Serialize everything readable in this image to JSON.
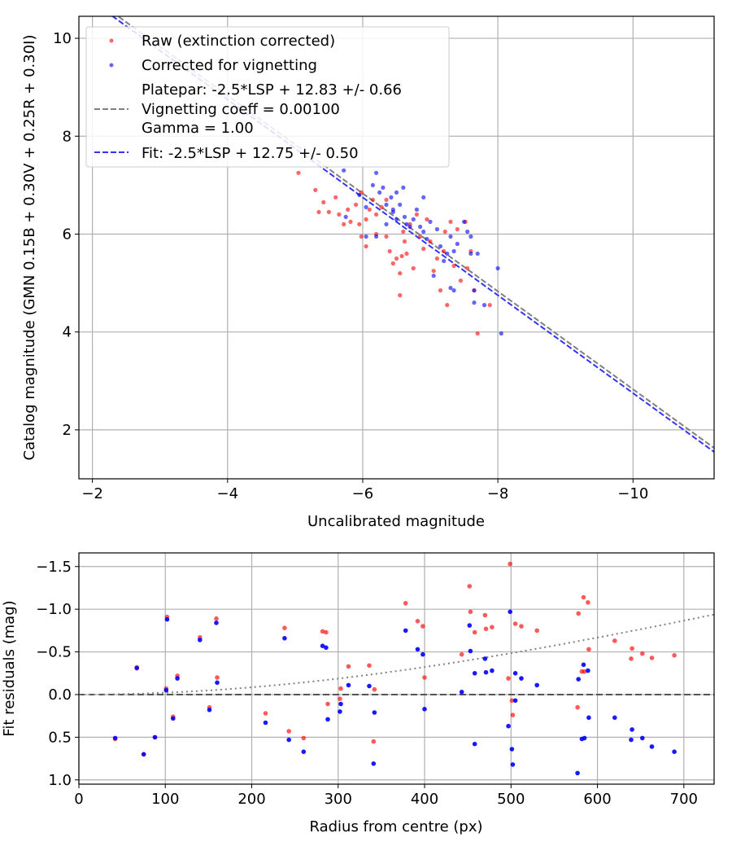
{
  "chart_data": [
    {
      "type": "scatter",
      "xlabel": "Uncalibrated magnitude",
      "ylabel": "Catalog magnitude (GMN 0.15B + 0.30V + 0.25R + 0.30I)",
      "xlim": [
        -1.8,
        -11.2
      ],
      "ylim": [
        10.45,
        1.0
      ],
      "xticks": [
        -2,
        -4,
        -6,
        -8,
        -10
      ],
      "xtick_labels": [
        "−2",
        "−4",
        "−6",
        "−8",
        "−10"
      ],
      "yticks": [
        2,
        4,
        6,
        8,
        10
      ],
      "ytick_labels": [
        "2",
        "4",
        "6",
        "8",
        "10"
      ],
      "grid": true,
      "legend_position": "top-left",
      "legend": [
        {
          "label": "Raw (extinction corrected)",
          "marker": "dot",
          "color": "#ff0000"
        },
        {
          "label": "Corrected for vignetting",
          "marker": "dot",
          "color": "#0000ff"
        },
        {
          "label_lines": [
            "Platepar: -2.5*LSP + 12.83 +/- 0.66",
            "Vignetting coeff = 0.00100",
            "Gamma = 1.00"
          ],
          "marker": "dashed-line",
          "color": "#808080"
        },
        {
          "label": "Fit: -2.5*LSP + 12.75 +/- 0.50",
          "marker": "dashed-line",
          "color": "#3333ff"
        }
      ],
      "series": [
        {
          "name": "Raw (extinction corrected)",
          "color": "#ff0000",
          "points": [
            [
              -5.05,
              7.25
            ],
            [
              -5.3,
              6.9
            ],
            [
              -5.35,
              6.45
            ],
            [
              -5.42,
              6.65
            ],
            [
              -5.5,
              6.45
            ],
            [
              -5.6,
              6.75
            ],
            [
              -5.65,
              6.4
            ],
            [
              -5.72,
              6.2
            ],
            [
              -5.78,
              6.5
            ],
            [
              -5.82,
              6.25
            ],
            [
              -5.9,
              6.6
            ],
            [
              -5.95,
              6.2
            ],
            [
              -5.98,
              5.95
            ],
            [
              -6.05,
              6.3
            ],
            [
              -6.1,
              6.5
            ],
            [
              -6.15,
              6.7
            ],
            [
              -6.2,
              6.4
            ],
            [
              -6.28,
              6.55
            ],
            [
              -6.35,
              6.7
            ],
            [
              -6.05,
              5.75
            ],
            [
              -6.2,
              6.0
            ],
            [
              -6.35,
              5.95
            ],
            [
              -6.4,
              5.65
            ],
            [
              -6.45,
              5.4
            ],
            [
              -6.5,
              5.5
            ],
            [
              -6.55,
              5.2
            ],
            [
              -6.58,
              5.55
            ],
            [
              -6.62,
              5.85
            ],
            [
              -6.65,
              5.6
            ],
            [
              -6.55,
              4.75
            ],
            [
              -6.6,
              6.05
            ],
            [
              -6.7,
              6.2
            ],
            [
              -6.75,
              5.3
            ],
            [
              -6.8,
              6.4
            ],
            [
              -6.85,
              5.95
            ],
            [
              -6.9,
              5.7
            ],
            [
              -6.95,
              6.3
            ],
            [
              -7.0,
              5.85
            ],
            [
              -7.05,
              5.25
            ],
            [
              -7.1,
              5.5
            ],
            [
              -7.15,
              4.85
            ],
            [
              -7.2,
              5.65
            ],
            [
              -7.22,
              6.05
            ],
            [
              -7.25,
              4.55
            ],
            [
              -7.3,
              6.25
            ],
            [
              -7.35,
              5.35
            ],
            [
              -7.4,
              6.1
            ],
            [
              -7.45,
              5.05
            ],
            [
              -7.55,
              5.3
            ],
            [
              -7.6,
              5.65
            ],
            [
              -7.65,
              4.85
            ],
            [
              -7.7,
              3.97
            ],
            [
              -7.88,
              4.55
            ],
            [
              -7.52,
              6.25
            ],
            [
              -5.98,
              6.85
            ]
          ]
        },
        {
          "name": "Corrected for vignetting",
          "color": "#0000ff",
          "points": [
            [
              -5.72,
              7.3
            ],
            [
              -5.95,
              6.8
            ],
            [
              -6.05,
              6.55
            ],
            [
              -6.15,
              7.0
            ],
            [
              -6.2,
              7.25
            ],
            [
              -6.25,
              6.85
            ],
            [
              -6.3,
              6.95
            ],
            [
              -6.35,
              6.6
            ],
            [
              -6.42,
              6.75
            ],
            [
              -6.45,
              6.45
            ],
            [
              -6.5,
              6.85
            ],
            [
              -6.55,
              6.6
            ],
            [
              -6.62,
              6.35
            ],
            [
              -6.7,
              6.15
            ],
            [
              -6.75,
              6.3
            ],
            [
              -6.8,
              6.5
            ],
            [
              -6.85,
              6.15
            ],
            [
              -6.9,
              6.05
            ],
            [
              -6.95,
              5.9
            ],
            [
              -7.0,
              6.25
            ],
            [
              -7.1,
              6.1
            ],
            [
              -7.15,
              5.75
            ],
            [
              -7.2,
              5.45
            ],
            [
              -7.25,
              5.6
            ],
            [
              -7.3,
              5.95
            ],
            [
              -7.35,
              5.65
            ],
            [
              -7.4,
              5.8
            ],
            [
              -7.5,
              6.25
            ],
            [
              -7.55,
              6.05
            ],
            [
              -7.6,
              5.6
            ],
            [
              -7.65,
              4.85
            ],
            [
              -7.7,
              5.6
            ],
            [
              -7.8,
              4.55
            ],
            [
              -7.65,
              4.6
            ],
            [
              -8.0,
              5.3
            ],
            [
              -8.05,
              3.97
            ],
            [
              -6.05,
              5.95
            ],
            [
              -6.2,
              5.95
            ],
            [
              -6.45,
              6.5
            ],
            [
              -6.6,
              6.95
            ],
            [
              -6.5,
              6.3
            ],
            [
              -7.35,
              4.85
            ],
            [
              -7.3,
              4.9
            ],
            [
              -6.35,
              6.2
            ],
            [
              -6.65,
              6.2
            ],
            [
              -7.05,
              5.15
            ],
            [
              -6.9,
              6.75
            ],
            [
              -5.75,
              6.35
            ],
            [
              -7.6,
              5.95
            ]
          ]
        },
        {
          "name": "Platepar: -2.5*LSP + 12.83 +/- 0.66",
          "type": "line",
          "style": "dashed",
          "color": "#808080",
          "intercept": 12.83,
          "slope": 1
        },
        {
          "name": "Fit: -2.5*LSP + 12.75 +/- 0.50",
          "type": "line",
          "style": "dashed",
          "color": "#3333ff",
          "intercept": 12.75,
          "slope": 1
        }
      ]
    },
    {
      "type": "scatter",
      "xlabel": "Radius from centre (px)",
      "ylabel": "Fit residuals (mag)",
      "xlim": [
        0,
        735
      ],
      "ylim": [
        -1.66,
        1.05
      ],
      "xticks": [
        0,
        100,
        200,
        300,
        400,
        500,
        600,
        700
      ],
      "xtick_labels": [
        "0",
        "100",
        "200",
        "300",
        "400",
        "500",
        "600",
        "700"
      ],
      "yticks": [
        1.0,
        0.5,
        0.0,
        -0.5,
        -1.0,
        -1.5
      ],
      "ytick_labels": [
        "1.0",
        "0.5",
        "0.0",
        "−0.5",
        "−1.0",
        "−1.5"
      ],
      "grid": true,
      "zero_line": {
        "value": 0,
        "style": "dashed",
        "color": "#555555"
      },
      "vignetting_curve": {
        "style": "dotted",
        "color": "#808080",
        "coeff": 0.001,
        "gamma": 1.0
      },
      "series": [
        {
          "name": "Raw (extinction corrected)",
          "color": "#ff0000",
          "points": [
            [
              42,
              0.52
            ],
            [
              67,
              -0.32
            ],
            [
              75,
              0.7
            ],
            [
              88,
              0.5
            ],
            [
              101,
              -0.07
            ],
            [
              102,
              -0.91
            ],
            [
              109,
              0.26
            ],
            [
              114,
              -0.22
            ],
            [
              140,
              -0.67
            ],
            [
              151,
              0.15
            ],
            [
              159,
              -0.89
            ],
            [
              160,
              -0.2
            ],
            [
              216,
              0.22
            ],
            [
              238,
              -0.78
            ],
            [
              243,
              0.43
            ],
            [
              260,
              0.51
            ],
            [
              282,
              -0.74
            ],
            [
              286,
              -0.73
            ],
            [
              288,
              0.11
            ],
            [
              302,
              0.05
            ],
            [
              303,
              -0.07
            ],
            [
              312,
              -0.33
            ],
            [
              336,
              -0.34
            ],
            [
              341,
              0.55
            ],
            [
              342,
              -0.06
            ],
            [
              378,
              -1.07
            ],
            [
              392,
              -0.86
            ],
            [
              398,
              -0.8
            ],
            [
              400,
              -0.2
            ],
            [
              443,
              -0.47
            ],
            [
              453,
              -0.97
            ],
            [
              452,
              -1.27
            ],
            [
              458,
              -0.73
            ],
            [
              470,
              -0.93
            ],
            [
              471,
              -0.77
            ],
            [
              478,
              -0.79
            ],
            [
              497,
              -0.19
            ],
            [
              499,
              -1.53
            ],
            [
              502,
              0.24
            ],
            [
              505,
              -0.83
            ],
            [
              501,
              0.07
            ],
            [
              512,
              -0.8
            ],
            [
              530,
              -0.75
            ],
            [
              577,
              0.15
            ],
            [
              578,
              -0.95
            ],
            [
              582,
              -0.27
            ],
            [
              584,
              -1.14
            ],
            [
              585,
              -0.27
            ],
            [
              589,
              -1.08
            ],
            [
              590,
              -0.53
            ],
            [
              620,
              -0.63
            ],
            [
              639,
              -0.42
            ],
            [
              640,
              -0.54
            ],
            [
              652,
              -0.48
            ],
            [
              663,
              -0.43
            ],
            [
              689,
              -0.46
            ]
          ]
        },
        {
          "name": "Corrected for vignetting",
          "color": "#0000ff",
          "points": [
            [
              42,
              0.51
            ],
            [
              67,
              -0.31
            ],
            [
              75,
              0.7
            ],
            [
              88,
              0.5
            ],
            [
              101,
              -0.05
            ],
            [
              102,
              -0.88
            ],
            [
              109,
              0.28
            ],
            [
              114,
              -0.19
            ],
            [
              140,
              -0.64
            ],
            [
              151,
              0.18
            ],
            [
              159,
              -0.84
            ],
            [
              160,
              -0.14
            ],
            [
              216,
              0.33
            ],
            [
              238,
              -0.66
            ],
            [
              243,
              0.53
            ],
            [
              260,
              0.67
            ],
            [
              282,
              -0.57
            ],
            [
              286,
              -0.55
            ],
            [
              288,
              0.29
            ],
            [
              302,
              0.2
            ],
            [
              303,
              0.11
            ],
            [
              312,
              -0.11
            ],
            [
              336,
              -0.1
            ],
            [
              341,
              0.81
            ],
            [
              342,
              0.21
            ],
            [
              378,
              -0.75
            ],
            [
              392,
              -0.53
            ],
            [
              398,
              -0.47
            ],
            [
              400,
              0.17
            ],
            [
              443,
              -0.03
            ],
            [
              453,
              -0.51
            ],
            [
              452,
              -0.81
            ],
            [
              458,
              0.58
            ],
            [
              458,
              -0.25
            ],
            [
              470,
              -0.42
            ],
            [
              471,
              -0.26
            ],
            [
              478,
              -0.28
            ],
            [
              497,
              0.37
            ],
            [
              499,
              -0.97
            ],
            [
              502,
              0.82
            ],
            [
              505,
              -0.25
            ],
            [
              501,
              0.64
            ],
            [
              505,
              0.07
            ],
            [
              512,
              -0.19
            ],
            [
              530,
              -0.11
            ],
            [
              577,
              0.92
            ],
            [
              578,
              -0.18
            ],
            [
              582,
              0.52
            ],
            [
              584,
              -0.35
            ],
            [
              585,
              0.51
            ],
            [
              589,
              -0.28
            ],
            [
              590,
              0.27
            ],
            [
              620,
              0.27
            ],
            [
              639,
              0.53
            ],
            [
              640,
              0.41
            ],
            [
              652,
              0.51
            ],
            [
              663,
              0.61
            ],
            [
              689,
              0.67
            ]
          ]
        }
      ]
    }
  ]
}
